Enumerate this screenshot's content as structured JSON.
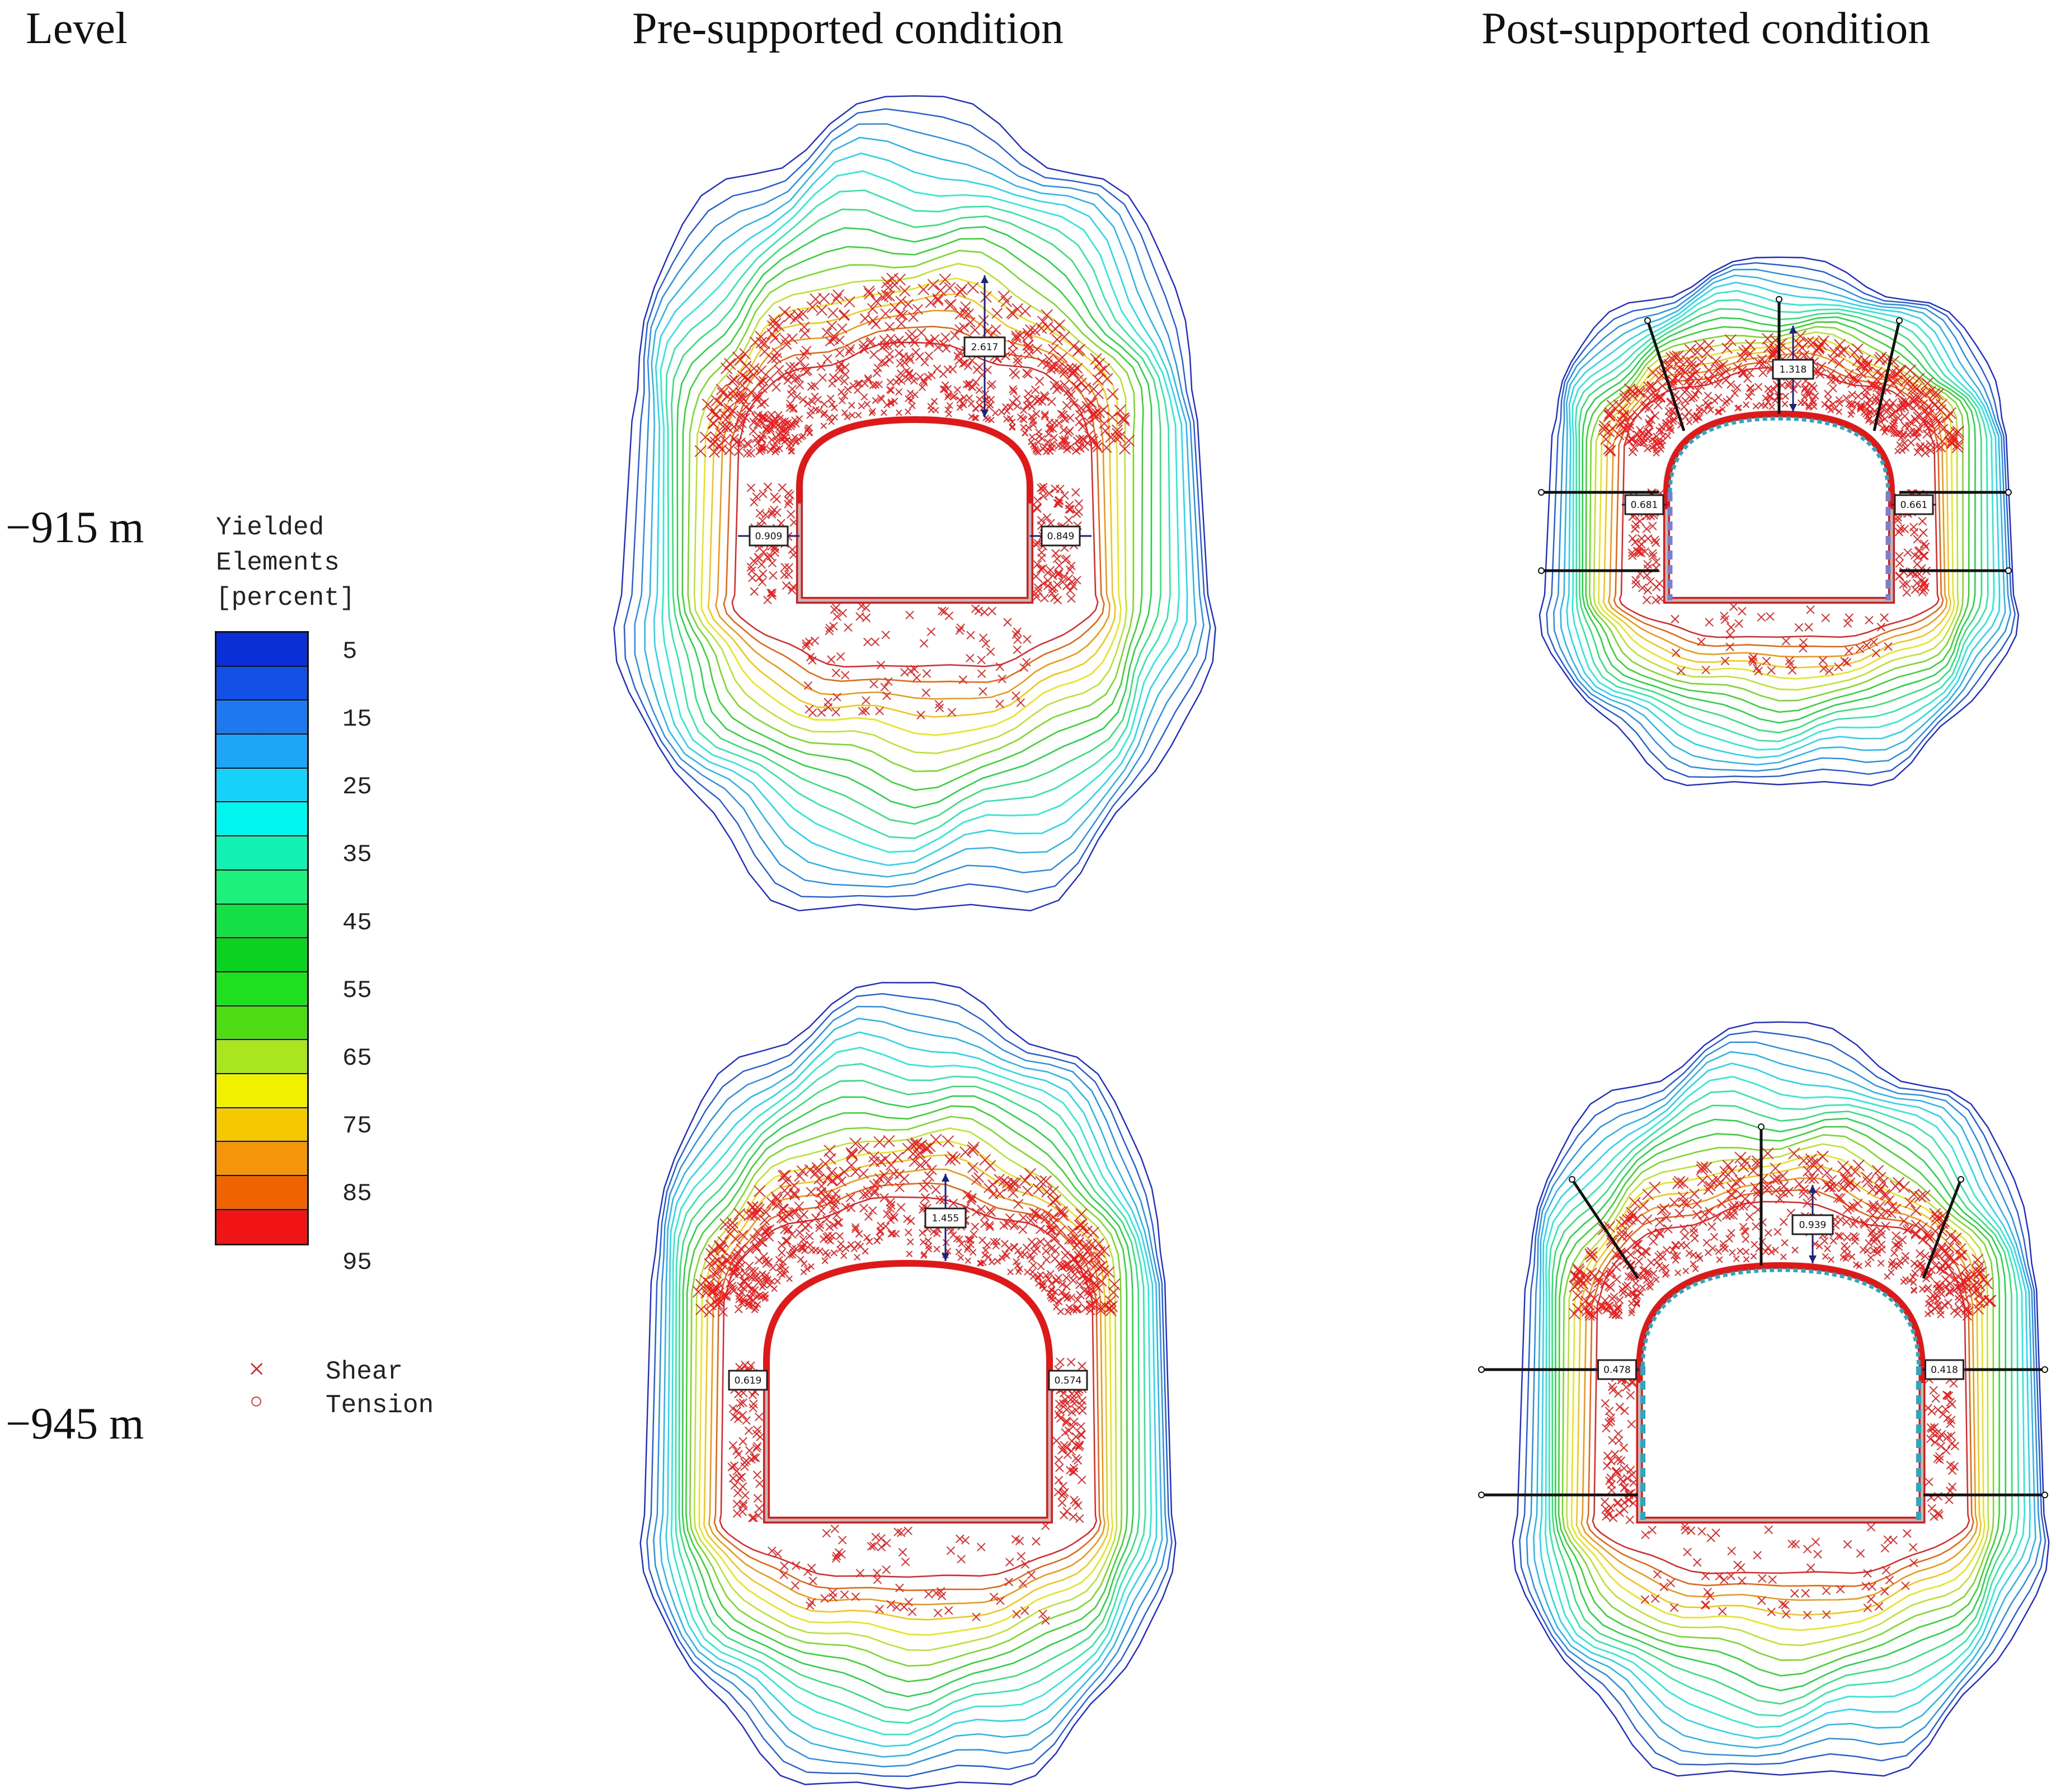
{
  "headers": {
    "level": "Level",
    "pre": "Pre-supported condition",
    "post": "Post-supported condition"
  },
  "levels": {
    "upper": "−915 m",
    "lower": "−945 m"
  },
  "legend": {
    "title_lines": [
      "Yielded",
      "Elements",
      "[percent]"
    ],
    "ticks": [
      "5",
      "15",
      "25",
      "35",
      "45",
      "55",
      "65",
      "75",
      "85",
      "95"
    ],
    "colors": [
      "#0a2fd6",
      "#1450e6",
      "#1e78f0",
      "#1ea5f5",
      "#16d2fa",
      "#00f5f0",
      "#14f0b4",
      "#1ef07d",
      "#14e046",
      "#0ad21e",
      "#1ee01e",
      "#50dc14",
      "#aae61e",
      "#f0f000",
      "#f5c800",
      "#f5960a",
      "#f06400",
      "#f01414"
    ],
    "shear_label": "Shear",
    "tension_label": "Tension",
    "shear_symbol": "×",
    "tension_symbol": "○"
  },
  "panels": {
    "pre_915": {
      "roof": "2.617",
      "left": "0.909",
      "right": "0.849"
    },
    "post_915": {
      "roof": "1.318",
      "left": "0.681",
      "right": "0.661"
    },
    "pre_945": {
      "roof": "1.455",
      "left": "0.619",
      "right": "0.574"
    },
    "post_945": {
      "roof": "0.939",
      "left": "0.478",
      "right": "0.418"
    }
  }
}
